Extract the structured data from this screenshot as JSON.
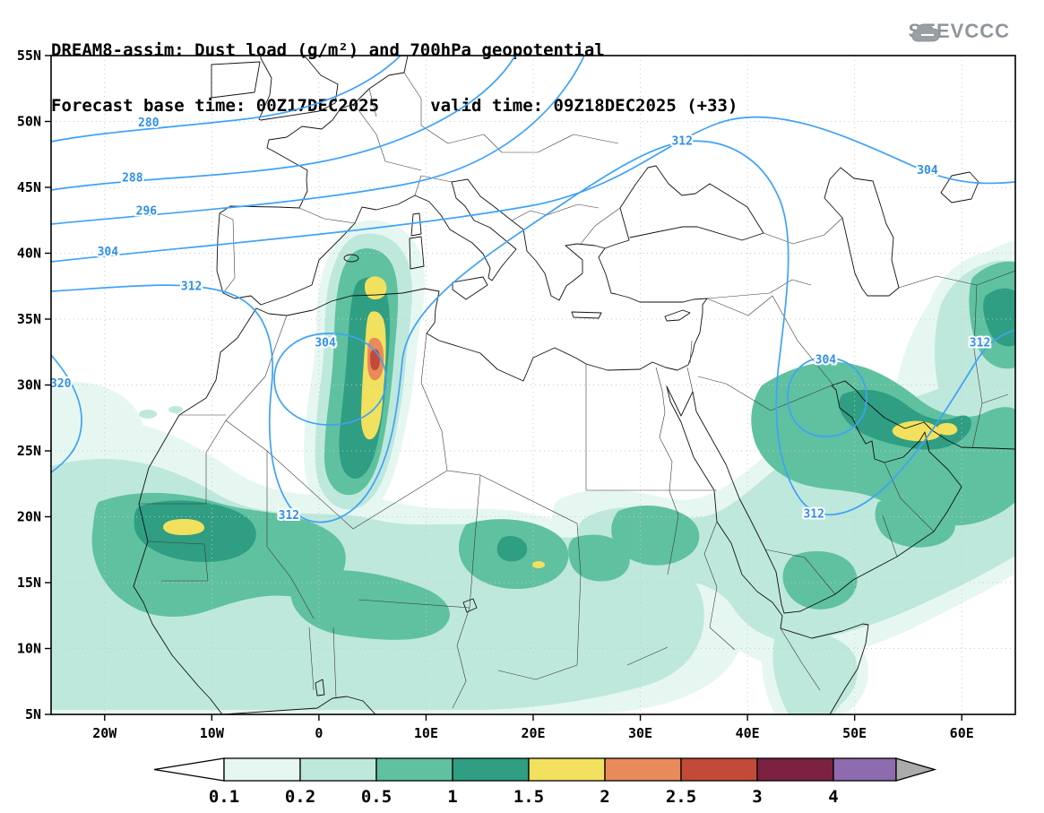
{
  "header": {
    "title_line1": "DREAM8-assim: Dust load (g/m²) and 700hPa geopotential",
    "title_line2": "Forecast base time: 00Z17DEC2025     valid time: 09Z18DEC2025 (+33)",
    "logo_text": "SEEVCCC"
  },
  "axes": {
    "lat_tick_values": [
      55,
      50,
      45,
      40,
      35,
      30,
      25,
      20,
      15,
      10,
      5
    ],
    "lat_tick_labels": [
      "55N",
      "50N",
      "45N",
      "40N",
      "35N",
      "30N",
      "25N",
      "20N",
      "15N",
      "10N",
      "5N"
    ],
    "lon_tick_values": [
      -20,
      -10,
      0,
      10,
      20,
      30,
      40,
      50,
      60
    ],
    "lon_tick_labels": [
      "20W",
      "10W",
      "0",
      "10E",
      "20E",
      "30E",
      "40E",
      "50E",
      "60E"
    ],
    "lon_range": [
      -25,
      65
    ],
    "lat_range": [
      5,
      55
    ]
  },
  "contour_labels": [
    {
      "text": "280",
      "lon": -15.9,
      "lat": 49.9
    },
    {
      "text": "288",
      "lon": -17.4,
      "lat": 45.7
    },
    {
      "text": "296",
      "lon": -16.1,
      "lat": 43.2
    },
    {
      "text": "304",
      "lon": -19.7,
      "lat": 40.1
    },
    {
      "text": "312",
      "lon": -11.9,
      "lat": 37.5
    },
    {
      "text": "320",
      "lon": -24.1,
      "lat": 30.1
    },
    {
      "text": "312",
      "lon": 33.9,
      "lat": 48.5
    },
    {
      "text": "304",
      "lon": 56.8,
      "lat": 46.3
    },
    {
      "text": "304",
      "lon": 0.6,
      "lat": 33.2
    },
    {
      "text": "304",
      "lon": 47.3,
      "lat": 31.9
    },
    {
      "text": "312",
      "lon": -2.8,
      "lat": 20.1
    },
    {
      "text": "312",
      "lon": 46.2,
      "lat": 20.2
    },
    {
      "text": "312",
      "lon": 61.7,
      "lat": 33.2
    }
  ],
  "colorbar": {
    "boundary_labels": [
      "0.1",
      "0.2",
      "0.5",
      "1",
      "1.5",
      "2",
      "2.5",
      "3",
      "4"
    ],
    "cell_colors": [
      "#e6f7f1",
      "#bfe8dc",
      "#5fc1a0",
      "#2f9e82",
      "#f1e15f",
      "#e98a5b",
      "#c14b38",
      "#7c2142",
      "#8d6bae"
    ],
    "arrow_left_color": "#ffffff",
    "arrow_right_color": "#ababab"
  },
  "chart_data": {
    "type": "heatmap",
    "title": "DREAM8-assim: Dust load (g/m²) and 700hPa geopotential",
    "subtitle": "Forecast base time: 00Z17DEC2025  valid time: 09Z18DEC2025 (+33)",
    "xlabel": "longitude",
    "ylabel": "latitude",
    "x_range_deg": [
      -25,
      65
    ],
    "y_range_deg": [
      5,
      55
    ],
    "grid": "dotted, 10deg lon x 5deg lat",
    "legend_position": "bottom colorbar",
    "fill_field": "dust load (g/m²)",
    "fill_levels": [
      0.1,
      0.2,
      0.5,
      1,
      1.5,
      2,
      2.5,
      3,
      4
    ],
    "fill_colors": [
      "#e6f7f1",
      "#bfe8dc",
      "#5fc1a0",
      "#2f9e82",
      "#f1e15f",
      "#e98a5b",
      "#c14b38",
      "#7c2142",
      "#8d6bae"
    ],
    "contour_field": "700hPa geopotential height (dam)",
    "contour_levels_labeled": [
      280,
      288,
      296,
      304,
      312,
      320
    ],
    "dust_maxima": [
      {
        "region": "central Algeria plume",
        "lon": 5,
        "lat": 32,
        "peak_level": "2.5-3"
      },
      {
        "region": "Mauritania",
        "lon": -14,
        "lat": 19,
        "peak_level": "1.5-2"
      },
      {
        "region": "central Sahara (Chad/Libya)",
        "lon": 20.5,
        "lat": 16.5,
        "peak_level": "1.5"
      },
      {
        "region": "Persian Gulf / UAE coast",
        "lon": 56,
        "lat": 26.5,
        "peak_level": "1.5-2"
      }
    ],
    "circulation_features": [
      {
        "feature": "cut-off low",
        "lon": 1,
        "lat": 31,
        "closed_contour": 304
      },
      {
        "feature": "cut-off low",
        "lon": 47.5,
        "lat": 30,
        "closed_contour": 304
      },
      {
        "feature": "ridge",
        "lon": 34,
        "lat": 48,
        "contour": 312
      }
    ]
  }
}
